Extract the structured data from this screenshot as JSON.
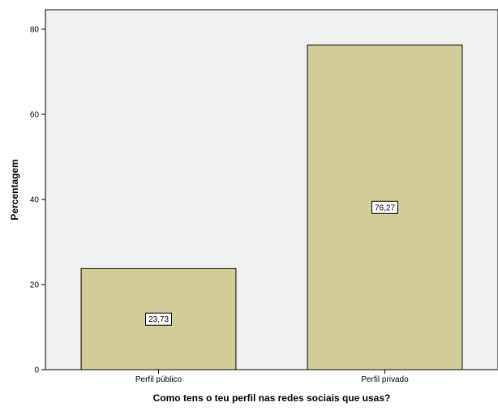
{
  "chart_data": {
    "type": "bar",
    "categories": [
      "Perfil público",
      "Perfil privado"
    ],
    "values": [
      23.73,
      76.27
    ],
    "data_labels": [
      "23,73",
      "76,27"
    ],
    "xlabel": "Como tens o teu perfil nas redes sociais que usas?",
    "ylabel": "Percentagem",
    "ylim": [
      0,
      80
    ],
    "yticks": [
      0,
      20,
      40,
      60,
      80
    ],
    "grid": false,
    "colors": {
      "plot_background": "#f0f0f0",
      "bar_fill": "#d3ce98",
      "bar_stroke": "#000000",
      "data_label_box": "#ffffff"
    }
  }
}
